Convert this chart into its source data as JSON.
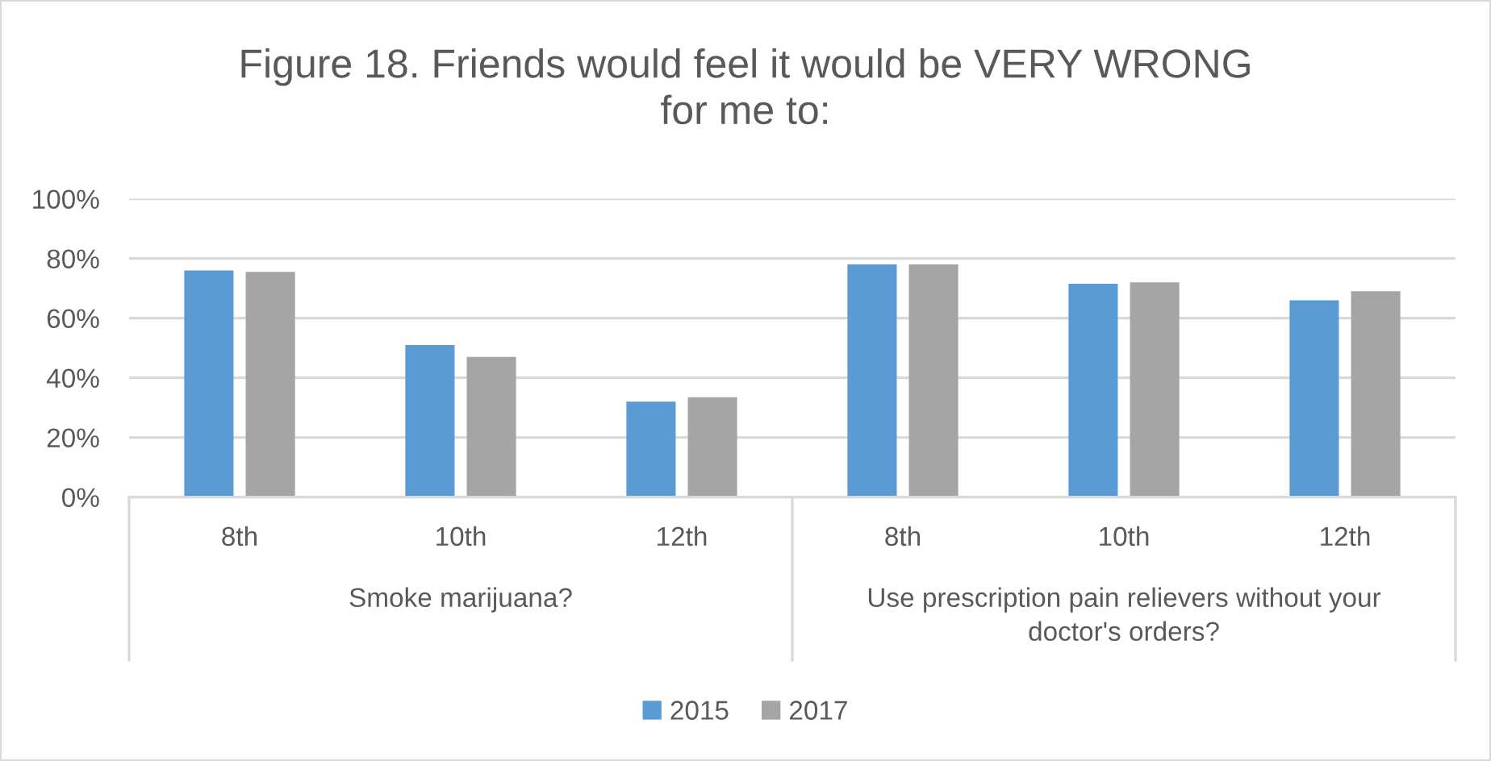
{
  "chart_data": {
    "type": "bar",
    "title": "Figure 18. Friends would feel it would be VERY WRONG\nfor me to:",
    "categories": [
      "8th",
      "10th",
      "12th",
      "8th",
      "10th",
      "12th"
    ],
    "annotations": [
      "Smoke marijuana?",
      "Use prescription pain relievers without your\ndoctor's orders?"
    ],
    "series": [
      {
        "name": "2015",
        "color": "#5b9bd5",
        "values": [
          76,
          51,
          32,
          78,
          71.5,
          66
        ]
      },
      {
        "name": "2017",
        "color": "#a5a5a5",
        "values": [
          75.5,
          47,
          33.5,
          78,
          72,
          69
        ]
      }
    ],
    "ylim": [
      0,
      100
    ],
    "yticks": [
      {
        "value": 0,
        "label": "0%"
      },
      {
        "value": 20,
        "label": "20%"
      },
      {
        "value": 40,
        "label": "40%"
      },
      {
        "value": 60,
        "label": "60%"
      },
      {
        "value": 80,
        "label": "80%"
      },
      {
        "value": 100,
        "label": "100%"
      }
    ],
    "grid": "y",
    "legend": "bottom"
  }
}
